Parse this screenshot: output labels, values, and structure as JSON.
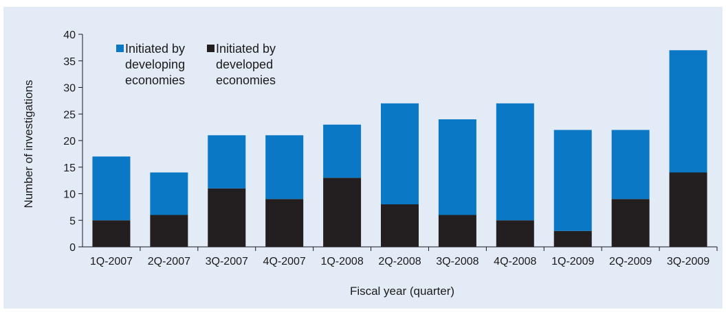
{
  "chart_data": {
    "type": "bar",
    "stacked": true,
    "title": "",
    "xlabel": "Fiscal year (quarter)",
    "ylabel": "Number of investigations",
    "ylim": [
      0,
      40
    ],
    "yticks": [
      0,
      5,
      10,
      15,
      20,
      25,
      30,
      35,
      40
    ],
    "categories": [
      "1Q-2007",
      "2Q-2007",
      "3Q-2007",
      "4Q-2007",
      "1Q-2008",
      "2Q-2008",
      "3Q-2008",
      "4Q-2008",
      "1Q-2009",
      "2Q-2009",
      "3Q-2009"
    ],
    "series": [
      {
        "name": "Initiated by developed economies",
        "legend_lines": [
          "Initiated by",
          "developed",
          "economies"
        ],
        "color": "#231f20",
        "values": [
          5,
          6,
          11,
          9,
          13,
          8,
          6,
          5,
          3,
          9,
          14
        ]
      },
      {
        "name": "Initiated by developing economies",
        "legend_lines": [
          "Initiated by",
          "developing",
          "economies"
        ],
        "color": "#0a78c5",
        "values": [
          12,
          8,
          10,
          12,
          10,
          19,
          18,
          22,
          19,
          13,
          23
        ]
      }
    ],
    "legend_position": "top-left",
    "grid": false,
    "background_color": "#e3ebf6"
  }
}
